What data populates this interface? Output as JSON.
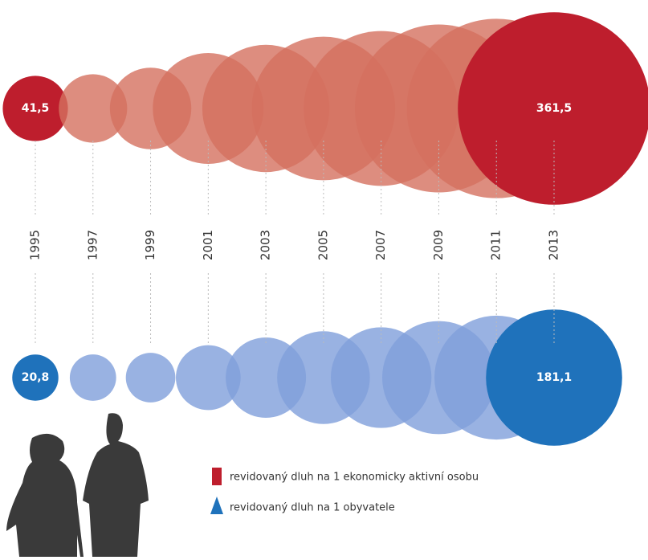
{
  "chart_data": {
    "type": "bubble",
    "categories": [
      "1995",
      "1997",
      "1999",
      "2001",
      "2003",
      "2005",
      "2007",
      "2009",
      "2011",
      "2013"
    ],
    "series": [
      {
        "name": "revidovaný dluh na 1 ekonomicky aktivní osobu",
        "color": "#d4705f",
        "highlight_color": "#be1e2d",
        "values": [
          41.5,
          45.7,
          64.8,
          120,
          158,
          201,
          234,
          275,
          314,
          361.5
        ],
        "value_labels": [
          "41,5",
          null,
          null,
          null,
          null,
          null,
          null,
          null,
          null,
          "361,5"
        ]
      },
      {
        "name": "revidovaný dluh na 1 obyvatele",
        "color": "#7f9fdb",
        "highlight_color": "#1f72bb",
        "values": [
          20.8,
          21,
          24,
          41,
          63,
          84,
          99,
          125,
          150,
          181.1
        ],
        "value_labels": [
          "20,8",
          null,
          null,
          null,
          null,
          null,
          null,
          null,
          null,
          "181,1"
        ]
      }
    ]
  }
}
